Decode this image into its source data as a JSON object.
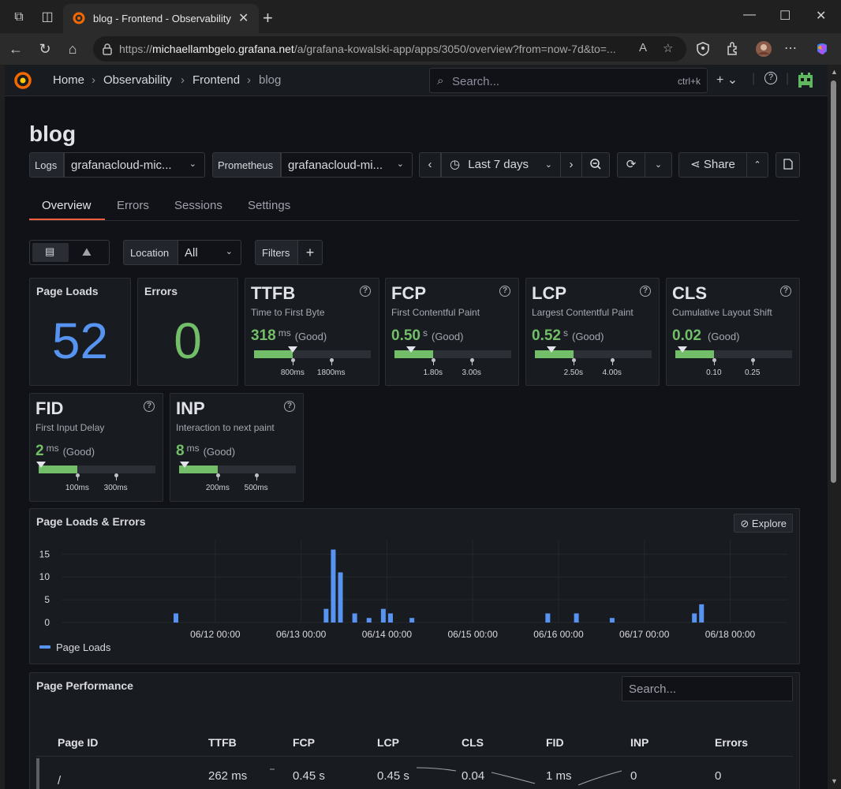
{
  "browser": {
    "tab_title": "blog - Frontend - Observability - G",
    "url_host": "michaellambgelo.grafana.net",
    "url_prefix": "https://",
    "url_path": "/a/grafana-kowalski-app/apps/3050/overview?from=now-7d&to=..."
  },
  "nav": {
    "breadcrumbs": [
      "Home",
      "Observability",
      "Frontend",
      "blog"
    ],
    "search_placeholder": "Search...",
    "search_shortcut": "ctrl+k"
  },
  "page": {
    "title": "blog",
    "logs_label": "Logs",
    "logs_value": "grafanacloud-mic...",
    "prom_label": "Prometheus",
    "prom_value": "grafanacloud-mi...",
    "time_range": "Last 7 days",
    "share_label": "Share",
    "tabs": [
      "Overview",
      "Errors",
      "Sessions",
      "Settings"
    ],
    "location_label": "Location",
    "location_value": "All",
    "filters_label": "Filters"
  },
  "stats": {
    "page_loads_title": "Page Loads",
    "page_loads_value": "52",
    "errors_title": "Errors",
    "errors_value": "0"
  },
  "vitals": [
    {
      "abbr": "TTFB",
      "name": "Time to First Byte",
      "value": "318",
      "unit": "ms",
      "rating": "(Good)",
      "t1": "800ms",
      "t2": "1800ms",
      "level": 0.33
    },
    {
      "abbr": "FCP",
      "name": "First Contentful Paint",
      "value": "0.50",
      "unit": "s",
      "rating": "(Good)",
      "t1": "1.80s",
      "t2": "3.00s",
      "level": 0.14
    },
    {
      "abbr": "LCP",
      "name": "Largest Contentful Paint",
      "value": "0.52",
      "unit": "s",
      "rating": "(Good)",
      "t1": "2.50s",
      "t2": "4.00s",
      "level": 0.14
    },
    {
      "abbr": "CLS",
      "name": "Cumulative Layout Shift",
      "value": "0.02",
      "unit": "",
      "rating": "(Good)",
      "t1": "0.10",
      "t2": "0.25",
      "level": 0.06
    },
    {
      "abbr": "FID",
      "name": "First Input Delay",
      "value": "2",
      "unit": "ms",
      "rating": "(Good)",
      "t1": "100ms",
      "t2": "300ms",
      "level": 0.02
    },
    {
      "abbr": "INP",
      "name": "Interaction to next paint",
      "value": "8",
      "unit": "ms",
      "rating": "(Good)",
      "t1": "200ms",
      "t2": "500ms",
      "level": 0.05
    }
  ],
  "chart": {
    "title": "Page Loads & Errors",
    "explore_label": "Explore"
  },
  "chart_data": {
    "type": "bar",
    "series": [
      {
        "name": "Page Loads",
        "color": "#5794f2"
      }
    ],
    "y_ticks": [
      "0",
      "5",
      "10",
      "15"
    ],
    "ylim": [
      0,
      18
    ],
    "xlim_hours": [
      -43,
      160
    ],
    "x_tick_labels": [
      "06/12 00:00",
      "06/13 00:00",
      "06/14 00:00",
      "06/15 00:00",
      "06/16 00:00",
      "06/17 00:00",
      "06/18 00:00"
    ],
    "x_tick_hours": [
      0,
      24,
      48,
      72,
      96,
      120,
      144
    ],
    "points": [
      {
        "hour": -11,
        "value": 2
      },
      {
        "hour": 31,
        "value": 3
      },
      {
        "hour": 33,
        "value": 16
      },
      {
        "hour": 35,
        "value": 11
      },
      {
        "hour": 39,
        "value": 2
      },
      {
        "hour": 43,
        "value": 1
      },
      {
        "hour": 47,
        "value": 3
      },
      {
        "hour": 49,
        "value": 2
      },
      {
        "hour": 55,
        "value": 1
      },
      {
        "hour": 93,
        "value": 2
      },
      {
        "hour": 101,
        "value": 2
      },
      {
        "hour": 111,
        "value": 1
      },
      {
        "hour": 134,
        "value": 2
      },
      {
        "hour": 136,
        "value": 4
      }
    ]
  },
  "perf": {
    "title": "Page Performance",
    "search_placeholder": "Search...",
    "columns": [
      "Page ID",
      "TTFB",
      "FCP",
      "LCP",
      "CLS",
      "FID",
      "INP",
      "Errors"
    ],
    "row": [
      "/",
      "262 ms",
      "0.45 s",
      "0.45 s",
      "0.04",
      "1 ms",
      "0",
      "0"
    ]
  }
}
